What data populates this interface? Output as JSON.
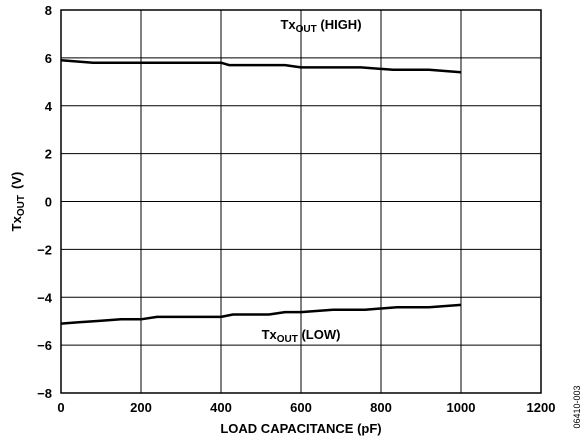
{
  "chart_data": {
    "type": "line",
    "xlabel": "LOAD CAPACITANCE (pF)",
    "ylabel": {
      "base": "Tx",
      "sub": "OUT",
      "unit": "(V)"
    },
    "xlim": [
      0,
      1200
    ],
    "ylim": [
      -8,
      8
    ],
    "xticks": [
      0,
      200,
      400,
      600,
      800,
      1000,
      1200
    ],
    "yticks": [
      8,
      6,
      4,
      2,
      0,
      -2,
      -4,
      -6,
      -8
    ],
    "xtick_labels": [
      "0",
      "200",
      "400",
      "600",
      "800",
      "1000",
      "1200"
    ],
    "ytick_labels": [
      "8",
      "6",
      "4",
      "2",
      "0",
      "−2",
      "−4",
      "−6",
      "−8"
    ],
    "grid": true,
    "series": [
      {
        "name": "TxOUT (HIGH)",
        "color": "#000000",
        "x": [
          0,
          80,
          400,
          420,
          560,
          600,
          750,
          830,
          920,
          1000
        ],
        "y": [
          5.9,
          5.8,
          5.8,
          5.7,
          5.7,
          5.6,
          5.6,
          5.5,
          5.5,
          5.4
        ]
      },
      {
        "name": "TxOUT (LOW)",
        "color": "#000000",
        "x": [
          0,
          40,
          100,
          150,
          200,
          240,
          400,
          430,
          520,
          560,
          600,
          680,
          760,
          840,
          920,
          1000
        ],
        "y": [
          -5.1,
          -5.05,
          -4.98,
          -4.92,
          -4.92,
          -4.82,
          -4.82,
          -4.72,
          -4.72,
          -4.62,
          -4.62,
          -4.52,
          -4.52,
          -4.42,
          -4.42,
          -4.32
        ]
      }
    ],
    "annotations": [
      {
        "base": "Tx",
        "sub": "OUT",
        "suffix": " (HIGH)",
        "x": 650,
        "y": 7.2
      },
      {
        "base": "Tx",
        "sub": "OUT",
        "suffix": " (LOW)",
        "x": 600,
        "y": -5.75
      }
    ]
  },
  "figure_id": "06410-003"
}
